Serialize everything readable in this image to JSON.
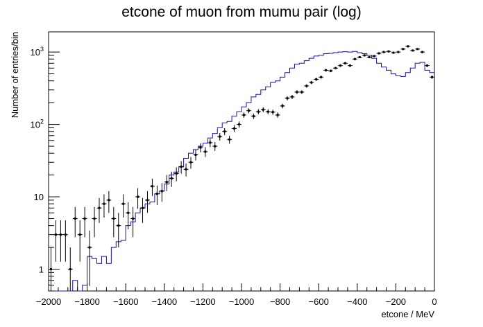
{
  "chart_data": {
    "type": "line",
    "title": "etcone of muon from mumu pair (log)",
    "xlabel": "etcone / MeV",
    "ylabel": "Number of entries/bin",
    "xlim": [
      -2000,
      0
    ],
    "ylim": [
      0.5,
      1900
    ],
    "y_scale": "log",
    "grid": false,
    "bin_width": 25,
    "x_ticks": [
      {
        "value": -2000,
        "label": "−2000"
      },
      {
        "value": -1800,
        "label": "−1800"
      },
      {
        "value": -1600,
        "label": "−1600"
      },
      {
        "value": -1400,
        "label": "−1400"
      },
      {
        "value": -1200,
        "label": "−1200"
      },
      {
        "value": -1000,
        "label": "−1000"
      },
      {
        "value": -800,
        "label": "−800"
      },
      {
        "value": -600,
        "label": "−600"
      },
      {
        "value": -400,
        "label": "−400"
      },
      {
        "value": -200,
        "label": "−200"
      },
      {
        "value": 0,
        "label": "0"
      }
    ],
    "y_ticks": [
      {
        "value": 1,
        "label": "1"
      },
      {
        "value": 10,
        "label": "10"
      },
      {
        "value": 100,
        "label": "10",
        "exponent": "2"
      },
      {
        "value": 1000,
        "label": "10",
        "exponent": "3"
      }
    ],
    "series": [
      {
        "style": "points-with-error-bars",
        "color": "#000000",
        "x": [
          -1987.5,
          -1962.5,
          -1937.5,
          -1912.5,
          -1887.5,
          -1862.5,
          -1837.5,
          -1812.5,
          -1787.5,
          -1762.5,
          -1737.5,
          -1712.5,
          -1687.5,
          -1662.5,
          -1637.5,
          -1612.5,
          -1587.5,
          -1562.5,
          -1537.5,
          -1512.5,
          -1487.5,
          -1462.5,
          -1437.5,
          -1412.5,
          -1387.5,
          -1362.5,
          -1337.5,
          -1312.5,
          -1287.5,
          -1262.5,
          -1237.5,
          -1212.5,
          -1187.5,
          -1162.5,
          -1137.5,
          -1112.5,
          -1087.5,
          -1062.5,
          -1037.5,
          -1012.5,
          -987.5,
          -962.5,
          -937.5,
          -912.5,
          -887.5,
          -862.5,
          -837.5,
          -812.5,
          -787.5,
          -762.5,
          -737.5,
          -712.5,
          -687.5,
          -662.5,
          -637.5,
          -612.5,
          -587.5,
          -562.5,
          -537.5,
          -512.5,
          -487.5,
          -462.5,
          -437.5,
          -412.5,
          -387.5,
          -362.5,
          -337.5,
          -312.5,
          -287.5,
          -262.5,
          -237.5,
          -212.5,
          -187.5,
          -162.5,
          -137.5,
          -112.5,
          -87.5,
          -62.5,
          -37.5,
          -12.5
        ],
        "values": [
          1,
          3,
          3,
          3,
          1,
          5,
          3,
          5,
          2,
          5,
          7,
          8,
          9,
          5,
          4,
          8,
          6,
          5,
          10,
          7,
          9,
          14,
          11,
          12,
          16,
          18,
          21,
          26,
          24,
          30,
          38,
          48,
          42,
          56,
          50,
          68,
          80,
          62,
          88,
          100,
          135,
          155,
          130,
          150,
          160,
          150,
          148,
          135,
          180,
          230,
          240,
          280,
          280,
          340,
          380,
          420,
          450,
          560,
          550,
          600,
          650,
          700,
          650,
          800,
          850,
          900,
          850,
          880,
          960,
          1000,
          1020,
          980,
          1000,
          1100,
          1200,
          1050,
          1100,
          1000,
          650,
          450
        ]
      },
      {
        "style": "step-histogram",
        "color": "#1010b0",
        "x": [
          -1987.5,
          -1962.5,
          -1937.5,
          -1912.5,
          -1887.5,
          -1862.5,
          -1837.5,
          -1812.5,
          -1787.5,
          -1762.5,
          -1737.5,
          -1712.5,
          -1687.5,
          -1662.5,
          -1637.5,
          -1612.5,
          -1587.5,
          -1562.5,
          -1537.5,
          -1512.5,
          -1487.5,
          -1462.5,
          -1437.5,
          -1412.5,
          -1387.5,
          -1362.5,
          -1337.5,
          -1312.5,
          -1287.5,
          -1262.5,
          -1237.5,
          -1212.5,
          -1187.5,
          -1162.5,
          -1137.5,
          -1112.5,
          -1087.5,
          -1062.5,
          -1037.5,
          -1012.5,
          -987.5,
          -962.5,
          -937.5,
          -912.5,
          -887.5,
          -862.5,
          -837.5,
          -812.5,
          -787.5,
          -762.5,
          -737.5,
          -712.5,
          -687.5,
          -662.5,
          -637.5,
          -612.5,
          -587.5,
          -562.5,
          -537.5,
          -512.5,
          -487.5,
          -462.5,
          -437.5,
          -412.5,
          -387.5,
          -362.5,
          -337.5,
          -312.5,
          -287.5,
          -262.5,
          -237.5,
          -212.5,
          -187.5,
          -162.5,
          -137.5,
          -112.5,
          -87.5,
          -62.5,
          -37.5,
          -12.5
        ],
        "values": [
          0,
          0,
          0,
          0,
          0,
          0.7,
          0.4,
          0.6,
          1.5,
          1.4,
          1.2,
          1.5,
          1.2,
          2,
          2.4,
          2.5,
          4,
          4.5,
          6,
          7,
          8,
          8.5,
          11,
          12,
          15,
          20,
          22,
          26,
          34,
          40,
          45,
          50,
          55,
          65,
          75,
          90,
          105,
          110,
          130,
          150,
          175,
          200,
          240,
          260,
          300,
          330,
          380,
          400,
          450,
          520,
          600,
          680,
          700,
          760,
          820,
          880,
          900,
          950,
          960,
          980,
          1000,
          1010,
          1000,
          1020,
          980,
          950,
          900,
          820,
          700,
          620,
          560,
          500,
          470,
          460,
          520,
          600,
          700,
          720,
          560,
          520
        ]
      }
    ]
  }
}
